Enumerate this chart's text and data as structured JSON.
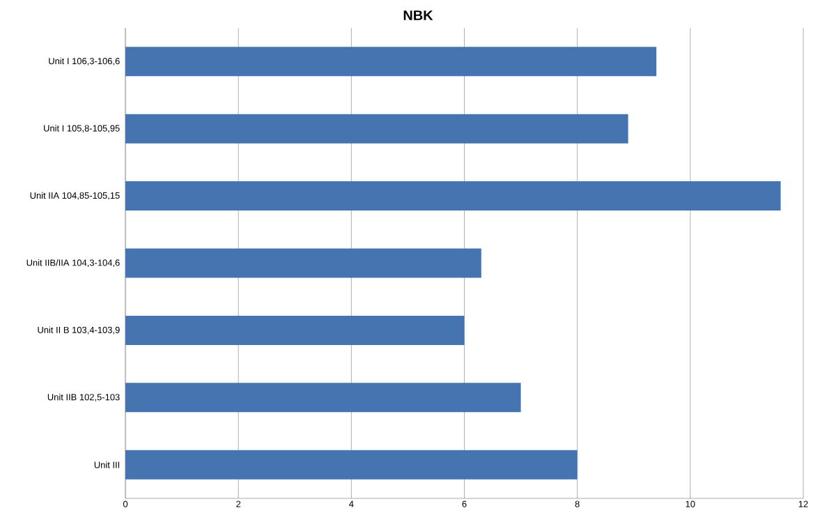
{
  "chart_data": {
    "type": "bar",
    "orientation": "horizontal",
    "title": "NBK",
    "categories": [
      "Unit I 106,3-106,6",
      "Unit I 105,8-105,95",
      "Unit IIA 104,85-105,15",
      "Unit IIB/IIA 104,3-104,6",
      "Unit II B 103,4-103,9",
      "Unit IIB 102,5-103",
      "Unit III"
    ],
    "values": [
      9.4,
      8.9,
      11.6,
      6.3,
      6.0,
      7.0,
      8.0
    ],
    "color": "#4674b0",
    "xlim": [
      0,
      12
    ],
    "xticks": [
      0,
      2,
      4,
      6,
      8,
      10,
      12
    ],
    "grid": "x"
  }
}
